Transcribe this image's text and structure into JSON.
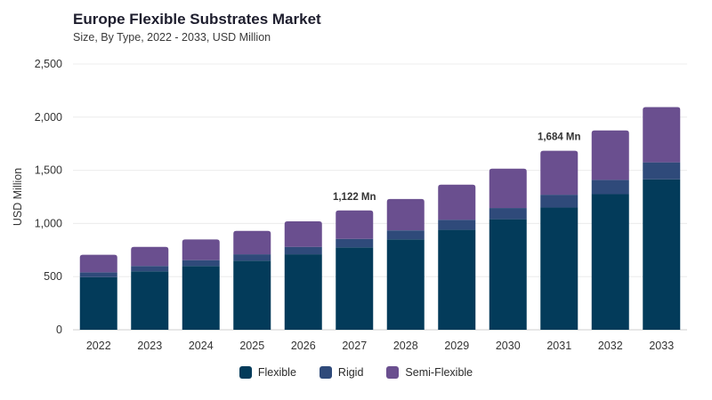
{
  "header": {
    "title": "Europe Flexible Substrates Market",
    "subtitle": "Size, By Type, 2022 - 2033, USD Million"
  },
  "colors": {
    "Flexible": "#033b5a",
    "Rigid": "#2f4a7a",
    "Semi-Flexible": "#6a4f8f"
  },
  "chart_data": {
    "type": "bar",
    "stacked": true,
    "title": "Europe Flexible Substrates Market",
    "subtitle": "Size, By Type, 2022 - 2033, USD Million",
    "xlabel": "",
    "ylabel": "USD Million",
    "ylim": [
      0,
      2500
    ],
    "yticks": [
      0,
      500,
      1000,
      1500,
      2000,
      2500
    ],
    "ytick_labels": [
      "0",
      "500",
      "1,000",
      "1,500",
      "2,000",
      "2,500"
    ],
    "grid": true,
    "legend_position": "bottom-center",
    "categories": [
      "2022",
      "2023",
      "2024",
      "2025",
      "2026",
      "2027",
      "2028",
      "2029",
      "2030",
      "2031",
      "2032",
      "2033"
    ],
    "series": [
      {
        "name": "Flexible",
        "values": [
          495,
          550,
          600,
          650,
          710,
          775,
          850,
          940,
          1040,
          1150,
          1275,
          1415
        ]
      },
      {
        "name": "Rigid",
        "values": [
          45,
          50,
          55,
          60,
          70,
          80,
          85,
          95,
          105,
          120,
          135,
          160
        ]
      },
      {
        "name": "Semi-Flexible",
        "values": [
          165,
          180,
          195,
          220,
          240,
          267,
          295,
          330,
          370,
          414,
          465,
          520
        ]
      }
    ],
    "annotations": [
      {
        "category": "2027",
        "text": "1,122 Mn"
      },
      {
        "category": "2031",
        "text": "1,684 Mn"
      }
    ]
  }
}
